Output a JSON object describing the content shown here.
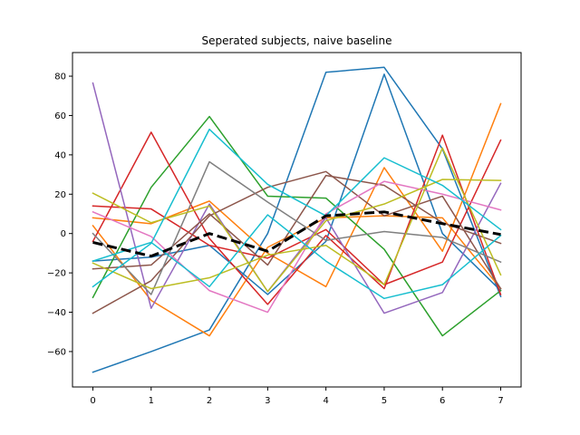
{
  "chart_data": {
    "type": "line",
    "title": "Seperated subjects, naive baseline",
    "xlabel": "",
    "ylabel": "",
    "x": [
      0,
      1,
      2,
      3,
      4,
      5,
      6,
      7
    ],
    "xlim": [
      -0.35,
      7.35
    ],
    "ylim": [
      -78,
      92
    ],
    "xticks": [
      "0",
      "1",
      "2",
      "3",
      "4",
      "5",
      "6",
      "7"
    ],
    "yticks": [
      -60,
      -40,
      -20,
      0,
      20,
      40,
      60,
      80
    ],
    "grid": false,
    "legend": false,
    "series": [
      {
        "color": "#1f77b4",
        "values": [
          -70.5,
          -60,
          -49,
          0,
          82,
          84.5,
          43,
          -32
        ]
      },
      {
        "color": "#1f77b4",
        "values": [
          -14,
          -12,
          -6,
          -31,
          -4,
          81,
          0,
          -29
        ]
      },
      {
        "color": "#ff7f0e",
        "values": [
          8,
          5,
          16.5,
          -10,
          -27,
          33.5,
          -9,
          66
        ]
      },
      {
        "color": "#ff7f0e",
        "values": [
          4,
          -34,
          -52,
          -7,
          8,
          9,
          8,
          -28
        ]
      },
      {
        "color": "#2ca02c",
        "values": [
          -32.5,
          23.5,
          59.5,
          19,
          18,
          -8,
          -52,
          -29
        ]
      },
      {
        "color": "#d62728",
        "values": [
          14,
          12.5,
          -6,
          -12.5,
          2,
          -26,
          -14.5,
          47.5
        ]
      },
      {
        "color": "#d62728",
        "values": [
          -4,
          51.5,
          -2.5,
          -36,
          -1,
          -28,
          50,
          -31
        ]
      },
      {
        "color": "#9467bd",
        "values": [
          76.5,
          -38,
          15,
          -29.5,
          8,
          -40.5,
          -30,
          25.5
        ]
      },
      {
        "color": "#8c564b",
        "values": [
          -40.5,
          -24,
          9,
          23.5,
          31.5,
          9,
          19,
          -28
        ]
      },
      {
        "color": "#8c564b",
        "values": [
          -18,
          -16,
          10,
          -16,
          29.5,
          24.5,
          5.5,
          -5
        ]
      },
      {
        "color": "#e377c2",
        "values": [
          11,
          -1.5,
          -29,
          -40,
          10,
          26.5,
          20,
          12
        ]
      },
      {
        "color": "#7f7f7f",
        "values": [
          0,
          -31,
          36.5,
          16,
          -3.5,
          1,
          -2,
          -14.5
        ]
      },
      {
        "color": "#bcbd22",
        "values": [
          20.5,
          5.5,
          14,
          -29.5,
          6.5,
          15,
          27.5,
          27
        ]
      },
      {
        "color": "#bcbd22",
        "values": [
          -15,
          -28,
          -22.5,
          -11,
          -6,
          -26,
          43.5,
          -21
        ]
      },
      {
        "color": "#17becf",
        "values": [
          -27,
          -5,
          53,
          25,
          9,
          38.5,
          24.5,
          2
        ]
      },
      {
        "color": "#17becf",
        "values": [
          -14,
          -4.5,
          -27,
          9.5,
          -14,
          -33,
          -26,
          -1
        ]
      },
      {
        "color": "#000000",
        "dashed": true,
        "width": 3,
        "values": [
          -4.5,
          -11.5,
          0,
          -9,
          9,
          11,
          5,
          -0.5
        ]
      }
    ]
  }
}
